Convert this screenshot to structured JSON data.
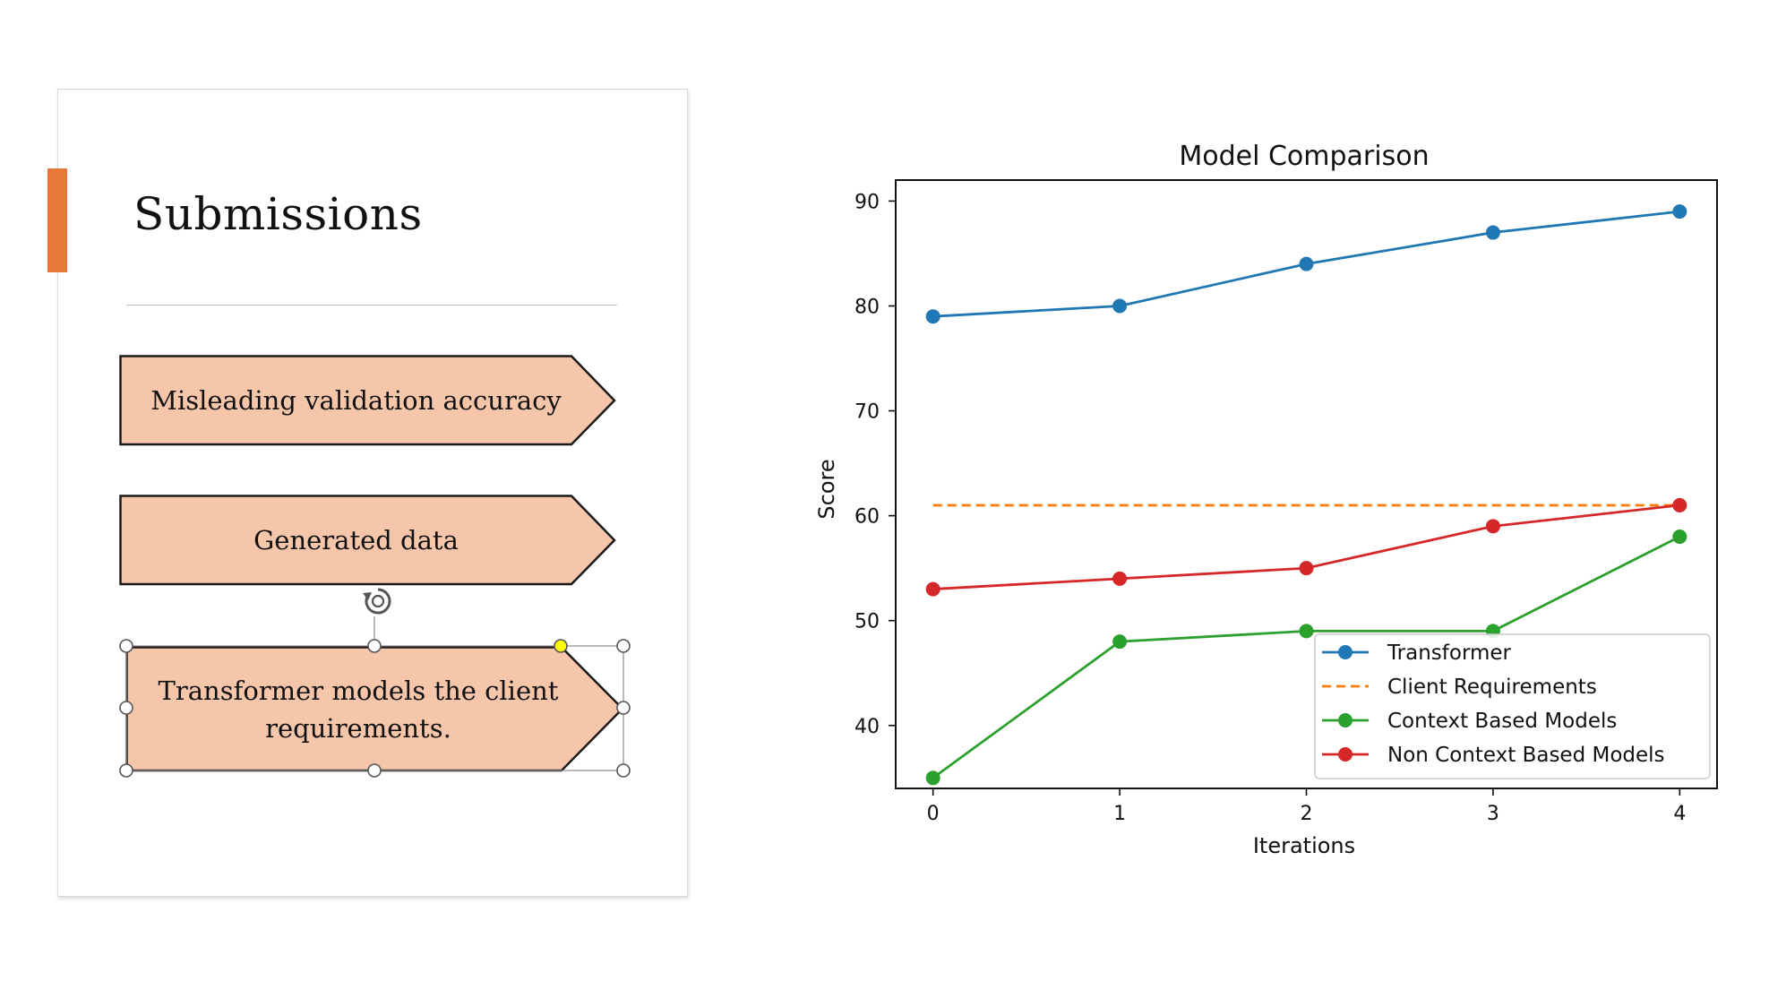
{
  "slide": {
    "title": "Submissions",
    "accent_color": "#e8773a",
    "arrows": [
      {
        "label": "Misleading validation accuracy"
      },
      {
        "label": "Generated data"
      },
      {
        "label": "Transformer models the client requirements."
      }
    ],
    "arrow_fill": "#f6c6ab",
    "selection_handle_color": "#ffff00"
  },
  "chart_data": {
    "type": "line",
    "title": "Model Comparison",
    "xlabel": "Iterations",
    "ylabel": "Score",
    "x": [
      0,
      1,
      2,
      3,
      4
    ],
    "xlim": [
      -0.2,
      4.2
    ],
    "ylim": [
      34,
      92
    ],
    "xticks": [
      "0",
      "1",
      "2",
      "3",
      "4"
    ],
    "yticks": [
      "40",
      "50",
      "60",
      "70",
      "80",
      "90"
    ],
    "grid": false,
    "legend_position": "lower-right",
    "series": [
      {
        "name": "Transformer",
        "values": [
          79,
          80,
          84,
          87,
          89
        ],
        "color": "#1f77b4",
        "style": "solid",
        "marker": true
      },
      {
        "name": "Client Requirements",
        "values": [
          61,
          61,
          61,
          61,
          61
        ],
        "color": "#ff7f0e",
        "style": "dashed",
        "marker": false
      },
      {
        "name": "Context Based Models",
        "values": [
          35,
          48,
          49,
          49,
          58
        ],
        "color": "#2ca02c",
        "style": "solid",
        "marker": true
      },
      {
        "name": "Non Context Based Models",
        "values": [
          53,
          54,
          55,
          59,
          61
        ],
        "color": "#d62728",
        "style": "solid",
        "marker": true
      }
    ]
  }
}
